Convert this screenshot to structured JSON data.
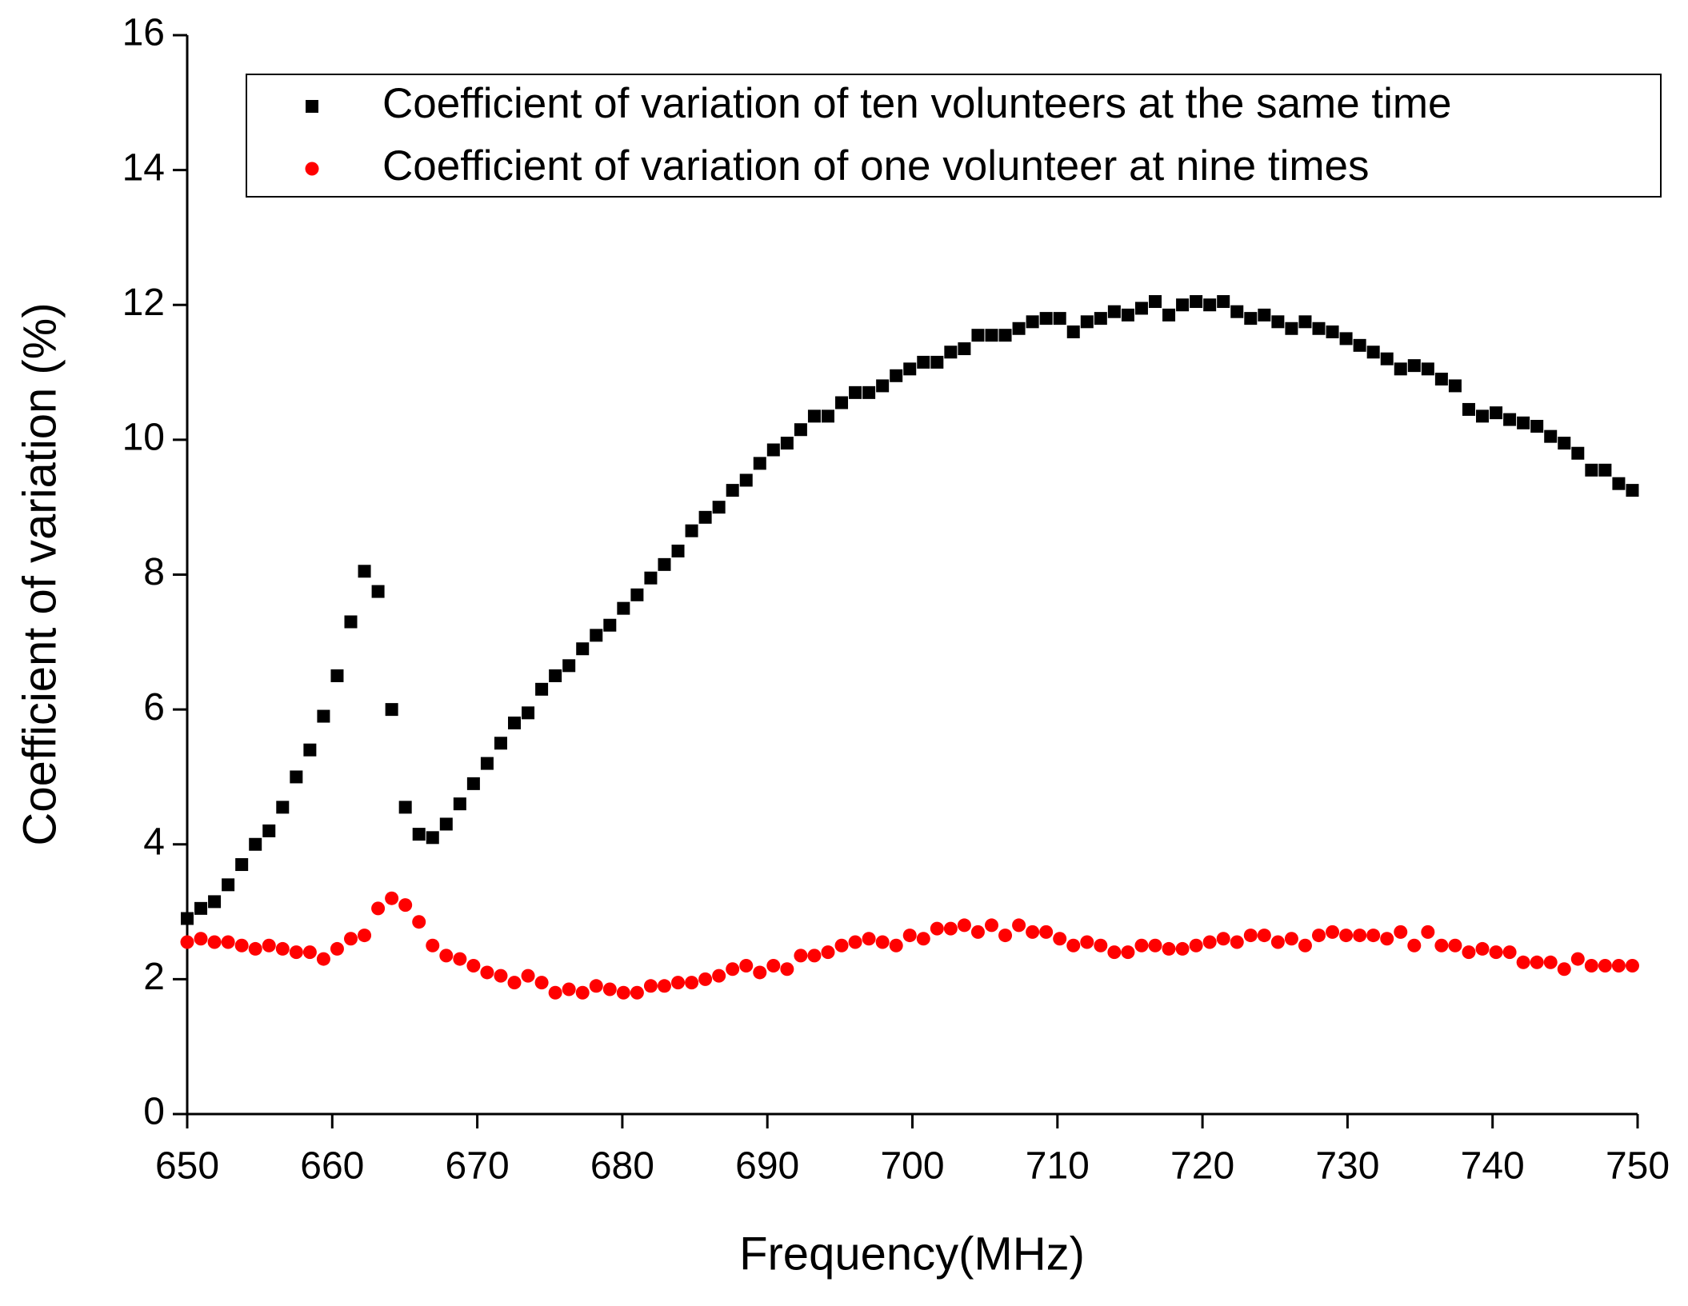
{
  "chart_data": {
    "type": "scatter",
    "xlabel": "Frequency(MHz)",
    "ylabel": "Coefficient of variation (%)",
    "xlim": [
      650,
      750
    ],
    "ylim": [
      0,
      16
    ],
    "xticks": [
      650,
      660,
      670,
      680,
      690,
      700,
      710,
      720,
      730,
      740,
      750
    ],
    "yticks": [
      0,
      2,
      4,
      6,
      8,
      10,
      12,
      14,
      16
    ],
    "legend": "upper right",
    "x": [
      650,
      650.94,
      651.88,
      652.82,
      653.76,
      654.7,
      655.64,
      656.58,
      657.52,
      658.46,
      659.4,
      660.34,
      661.28,
      662.22,
      663.16,
      664.1,
      665.04,
      665.98,
      666.92,
      667.86,
      668.8,
      669.74,
      670.68,
      671.62,
      672.56,
      673.5,
      674.44,
      675.38,
      676.32,
      677.26,
      678.2,
      679.14,
      680.08,
      681.02,
      681.96,
      682.9,
      683.84,
      684.78,
      685.72,
      686.66,
      687.6,
      688.54,
      689.48,
      690.42,
      691.36,
      692.3,
      693.24,
      694.18,
      695.12,
      696.06,
      697,
      697.94,
      698.88,
      699.82,
      700.76,
      701.7,
      702.64,
      703.58,
      704.52,
      705.46,
      706.4,
      707.34,
      708.28,
      709.22,
      710.16,
      711.1,
      712.04,
      712.98,
      713.92,
      714.86,
      715.8,
      716.74,
      717.68,
      718.62,
      719.56,
      720.5,
      721.44,
      722.38,
      723.32,
      724.26,
      725.2,
      726.14,
      727.08,
      728.02,
      728.96,
      729.9,
      730.84,
      731.78,
      732.72,
      733.66,
      734.6,
      735.54,
      736.48,
      737.42,
      738.36,
      739.3,
      740.24,
      741.18,
      742.12,
      743.06,
      744,
      744.94,
      745.88,
      746.82,
      747.76,
      748.7,
      749.64
    ],
    "series": [
      {
        "name": "Coefficient of variation of ten volunteers at the same time",
        "color": "#000000",
        "marker": "square",
        "values": [
          2.9,
          3.05,
          3.15,
          3.4,
          3.7,
          4.0,
          4.2,
          4.55,
          5.0,
          5.4,
          5.9,
          6.5,
          7.3,
          8.05,
          7.75,
          6.0,
          4.55,
          4.15,
          4.1,
          4.3,
          4.6,
          4.9,
          5.2,
          5.5,
          5.8,
          5.95,
          6.3,
          6.5,
          6.65,
          6.9,
          7.1,
          7.25,
          7.5,
          7.7,
          7.95,
          8.15,
          8.35,
          8.65,
          8.85,
          9.0,
          9.25,
          9.4,
          9.65,
          9.85,
          9.95,
          10.15,
          10.35,
          10.35,
          10.55,
          10.7,
          10.7,
          10.8,
          10.95,
          11.05,
          11.15,
          11.15,
          11.3,
          11.35,
          11.55,
          11.55,
          11.55,
          11.65,
          11.75,
          11.8,
          11.8,
          11.6,
          11.75,
          11.8,
          11.9,
          11.85,
          11.95,
          12.05,
          11.85,
          12.0,
          12.05,
          12.0,
          12.05,
          11.9,
          11.8,
          11.85,
          11.75,
          11.65,
          11.75,
          11.65,
          11.6,
          11.5,
          11.4,
          11.3,
          11.2,
          11.05,
          11.1,
          11.05,
          10.9,
          10.8,
          10.45,
          10.35,
          10.4,
          10.3,
          10.25,
          10.2,
          10.05,
          9.95,
          9.8,
          9.55,
          9.55,
          9.35,
          9.25
        ]
      },
      {
        "name": "Coefficient of variation of one volunteer at nine times",
        "color": "#ff0000",
        "marker": "circle",
        "values": [
          2.55,
          2.6,
          2.55,
          2.55,
          2.5,
          2.45,
          2.5,
          2.45,
          2.4,
          2.4,
          2.3,
          2.45,
          2.6,
          2.65,
          3.05,
          3.2,
          3.1,
          2.85,
          2.5,
          2.35,
          2.3,
          2.2,
          2.1,
          2.05,
          1.95,
          2.05,
          1.95,
          1.8,
          1.85,
          1.8,
          1.9,
          1.85,
          1.8,
          1.8,
          1.9,
          1.9,
          1.95,
          1.95,
          2.0,
          2.05,
          2.15,
          2.2,
          2.1,
          2.2,
          2.15,
          2.35,
          2.35,
          2.4,
          2.5,
          2.55,
          2.6,
          2.55,
          2.5,
          2.65,
          2.6,
          2.75,
          2.75,
          2.8,
          2.7,
          2.8,
          2.65,
          2.8,
          2.7,
          2.7,
          2.6,
          2.5,
          2.55,
          2.5,
          2.4,
          2.4,
          2.5,
          2.5,
          2.45,
          2.45,
          2.5,
          2.55,
          2.6,
          2.55,
          2.65,
          2.65,
          2.55,
          2.6,
          2.5,
          2.65,
          2.7,
          2.65,
          2.65,
          2.65,
          2.6,
          2.7,
          2.5,
          2.7,
          2.5,
          2.5,
          2.4,
          2.45,
          2.4,
          2.4,
          2.25,
          2.25,
          2.25,
          2.15,
          2.3,
          2.2,
          2.2,
          2.2,
          2.2
        ]
      }
    ]
  }
}
